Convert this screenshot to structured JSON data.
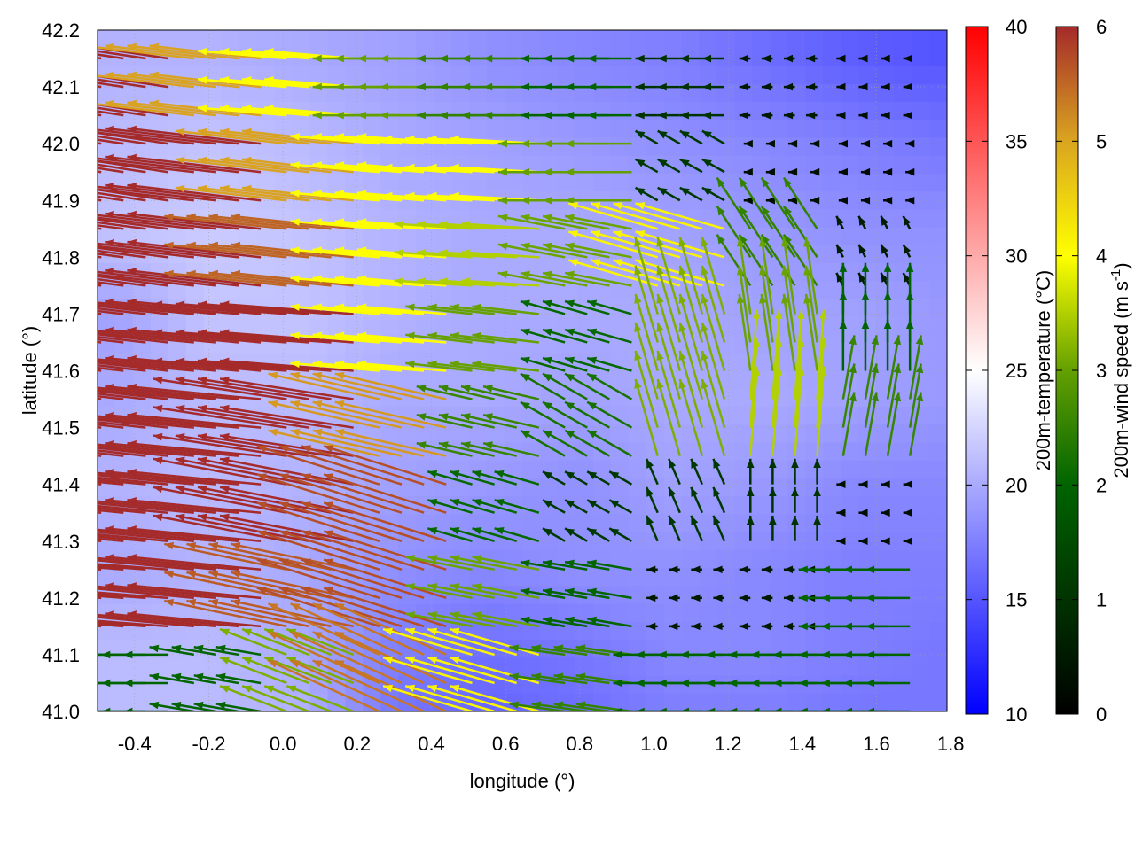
{
  "chart_data": {
    "type": "heatmap",
    "title": "",
    "xlabel": "longitude (°)",
    "ylabel": "latitude (°)",
    "xlim": [
      -0.5,
      1.79
    ],
    "ylim": [
      41.0,
      42.2
    ],
    "xticks": [
      "-0.4",
      "-0.2",
      "0.0",
      "0.2",
      "0.4",
      "0.6",
      "0.8",
      "1.0",
      "1.2",
      "1.4",
      "1.6",
      "1.8"
    ],
    "xtick_values": [
      -0.4,
      -0.2,
      0.0,
      0.2,
      0.4,
      0.6,
      0.8,
      1.0,
      1.2,
      1.4,
      1.6,
      1.8
    ],
    "yticks": [
      "41.0",
      "41.1",
      "41.2",
      "41.3",
      "41.4",
      "41.5",
      "41.6",
      "41.7",
      "41.8",
      "41.9",
      "42.0",
      "42.1",
      "42.2"
    ],
    "ytick_values": [
      41.0,
      41.1,
      41.2,
      41.3,
      41.4,
      41.5,
      41.6,
      41.7,
      41.8,
      41.9,
      42.0,
      42.1,
      42.2
    ],
    "grid": true,
    "temperature": {
      "label": "200m-temperature (°C)",
      "range": [
        10,
        40
      ],
      "ticks": [
        "10",
        "15",
        "20",
        "25",
        "30",
        "35",
        "40"
      ],
      "tick_values": [
        10,
        15,
        20,
        25,
        30,
        35,
        40
      ],
      "colors": {
        "low": "#0000ff",
        "mid": "#ffffff",
        "high": "#ff0000"
      },
      "lon": [
        -0.45,
        -0.2,
        0.05,
        0.3,
        0.55,
        0.8,
        1.05,
        1.3,
        1.55,
        1.78
      ],
      "lat": [
        42.15,
        42.0,
        41.85,
        41.7,
        41.55,
        41.4,
        41.25,
        41.1,
        41.0
      ],
      "values": [
        [
          20.5,
          20.5,
          20.0,
          19.5,
          18.5,
          18.0,
          17.5,
          16.5,
          15.5,
          15.0
        ],
        [
          21.0,
          21.5,
          21.0,
          20.0,
          19.5,
          19.0,
          18.5,
          18.0,
          17.5,
          17.0
        ],
        [
          21.5,
          22.0,
          21.5,
          20.5,
          20.0,
          20.0,
          19.5,
          19.0,
          18.5,
          18.5
        ],
        [
          19.5,
          21.5,
          21.5,
          20.5,
          20.0,
          20.0,
          20.0,
          19.5,
          19.5,
          19.0
        ],
        [
          20.0,
          21.0,
          21.0,
          20.0,
          20.0,
          19.5,
          20.0,
          20.0,
          19.5,
          19.0
        ],
        [
          20.5,
          21.0,
          20.5,
          19.5,
          19.0,
          18.5,
          19.5,
          19.0,
          18.0,
          18.0
        ],
        [
          20.0,
          20.5,
          20.0,
          18.5,
          18.0,
          18.5,
          18.5,
          18.0,
          17.5,
          17.5
        ],
        [
          21.0,
          21.0,
          20.0,
          17.5,
          16.5,
          17.0,
          18.0,
          18.0,
          17.5,
          17.0
        ],
        [
          21.0,
          21.0,
          20.5,
          17.0,
          16.0,
          16.5,
          17.5,
          17.5,
          17.0,
          17.0
        ]
      ]
    },
    "wind": {
      "label": "200m-wind speed (m s-1)",
      "label_main": "200m-wind speed (m s",
      "label_sup": "-1",
      "label_end": ")",
      "range": [
        0,
        6
      ],
      "ticks": [
        "0",
        "1",
        "2",
        "3",
        "4",
        "5",
        "6"
      ],
      "tick_values": [
        0,
        1,
        2,
        3,
        4,
        5,
        6
      ],
      "colors": [
        "#000000",
        "#003300",
        "#006400",
        "#64a000",
        "#ffff00",
        "#daa520",
        "#a52a2a"
      ],
      "lon": [
        -0.4,
        -0.15,
        0.1,
        0.35,
        0.6,
        0.85,
        1.1,
        1.35,
        1.6
      ],
      "lat": [
        42.1,
        41.95,
        41.8,
        41.65,
        41.5,
        41.35,
        41.2,
        41.05
      ],
      "u": [
        [
          -6,
          -5,
          -4,
          -3,
          -2.5,
          -2,
          -1,
          -0.5,
          -0.3
        ],
        [
          -6,
          -6,
          -5,
          -4,
          -4,
          -3,
          -1,
          -0.3,
          -0.2
        ],
        [
          -6,
          -6,
          -5.5,
          -4,
          -3.5,
          -3,
          -4,
          -1.5,
          -0.3
        ],
        [
          -6,
          -6,
          -6,
          -4,
          -3,
          -2,
          -1,
          -0.5,
          0
        ],
        [
          -6,
          -6,
          -6,
          -5,
          -2.5,
          -2,
          -1,
          0.3,
          0.5
        ],
        [
          -6,
          -6,
          -6,
          -5.5,
          -2,
          -1,
          -0.5,
          0,
          -0.3
        ],
        [
          -6,
          -6,
          -5.5,
          -5.5,
          -3,
          -2,
          -0.5,
          -0.5,
          -2
        ],
        [
          -2,
          -2,
          -3,
          -5,
          -4,
          -2.5,
          -2,
          -2,
          -2
        ]
      ],
      "v": [
        [
          0.8,
          0.5,
          0.3,
          0,
          0,
          0,
          0,
          0,
          0
        ],
        [
          0.8,
          0.6,
          0.5,
          0.3,
          0.2,
          0,
          0.5,
          0,
          0
        ],
        [
          0.7,
          0.6,
          0.5,
          0.3,
          0.2,
          0.5,
          1,
          2,
          0.5
        ],
        [
          0.6,
          0.5,
          0.4,
          0.3,
          0.3,
          0.5,
          3,
          3,
          2
        ],
        [
          0.6,
          0.5,
          0.8,
          1,
          0.5,
          1,
          3,
          3.5,
          2.5
        ],
        [
          0.5,
          0.5,
          1,
          1.5,
          0.5,
          0.5,
          1,
          1,
          0
        ],
        [
          0.4,
          0.5,
          1,
          1.5,
          0.5,
          0.3,
          0,
          0,
          0
        ],
        [
          0,
          0.3,
          1,
          2,
          1,
          0.3,
          0,
          0,
          0
        ]
      ]
    }
  }
}
